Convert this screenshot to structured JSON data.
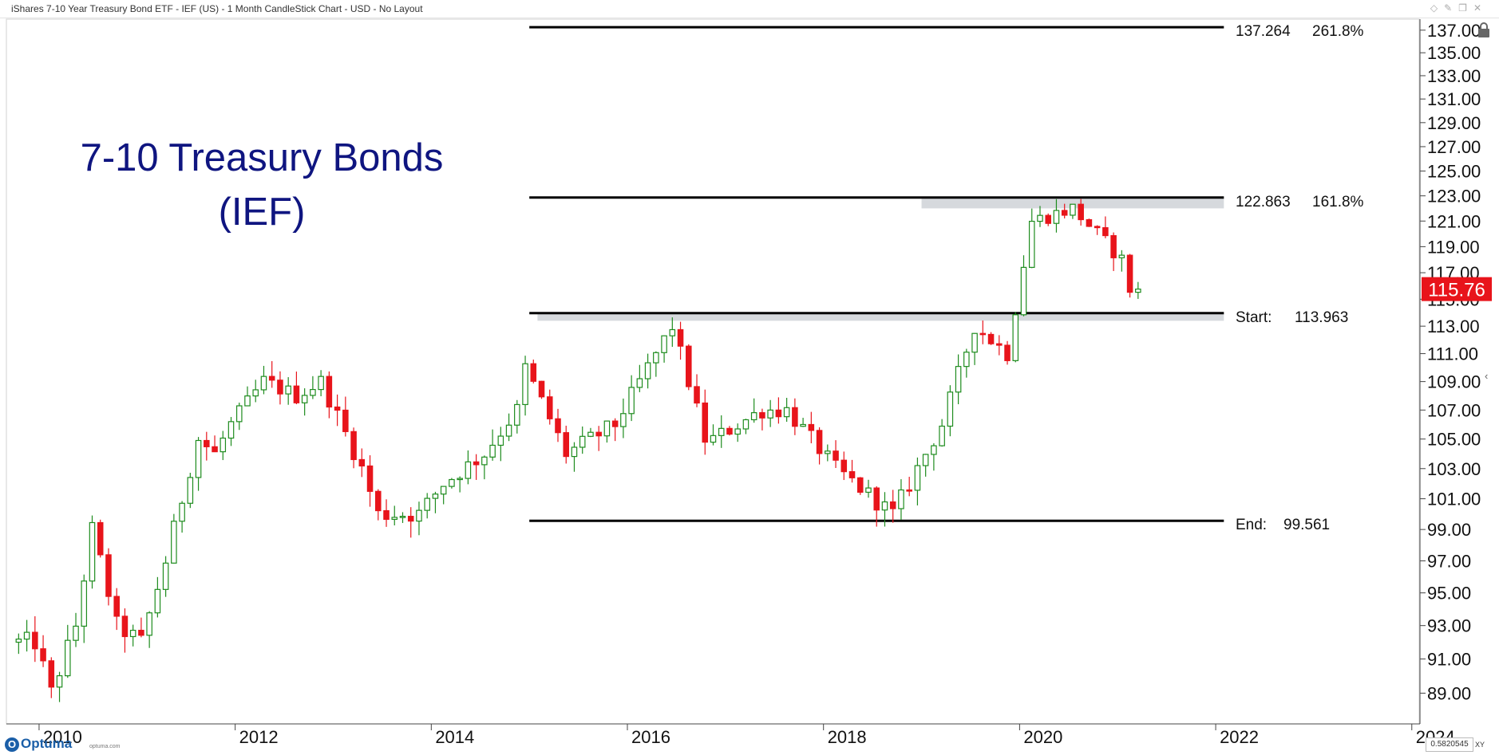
{
  "window": {
    "title": "iShares 7-10 Year Treasury Bond ETF - IEF (US) - 1 Month CandleStick Chart - USD - No Layout",
    "window_icons": [
      "pin-icon",
      "float-icon",
      "restore-icon",
      "close-icon"
    ]
  },
  "annotation": {
    "line1": "7-10 Treasury Bonds",
    "line2": "(IEF)",
    "color": "#0f1580"
  },
  "fib_levels": [
    {
      "value": "137.264",
      "pct": "261.8%"
    },
    {
      "value": "122.863",
      "pct": "161.8%"
    },
    {
      "prefix": "Start:",
      "value": "113.963"
    },
    {
      "prefix": "End:",
      "value": "99.561"
    }
  ],
  "last_price": {
    "label": "115.76",
    "value": 115.76,
    "color": "#e8141b"
  },
  "footer": {
    "brand": "Optuma",
    "site": "optuma.com",
    "readout": "0.5820545",
    "mode": "XY"
  },
  "chart_data": {
    "type": "candlestick",
    "interval": "1 Month",
    "currency": "USD",
    "y_range": [
      87.6,
      137.7
    ],
    "log_scale": true,
    "x_range": [
      "2009-09",
      "2024-02"
    ],
    "x_ticks": [
      "2010",
      "2012",
      "2014",
      "2016",
      "2018",
      "2020",
      "2022",
      "2024"
    ],
    "x_tick_labels": [
      "2010",
      "2012",
      "2014",
      "2016",
      "2018",
      "2020",
      "2022",
      "2024"
    ],
    "y_ticks": [
      89,
      91,
      93,
      95,
      97,
      99,
      101,
      103,
      105,
      107,
      109,
      111,
      113,
      115,
      117,
      119,
      121,
      123,
      125,
      127,
      129,
      131,
      133,
      135,
      137
    ],
    "y_tick_labels": [
      "89.00",
      "91.00",
      "93.00",
      "95.00",
      "97.00",
      "99.00",
      "101.00",
      "103.00",
      "105.00",
      "107.00",
      "109.00",
      "111.00",
      "113.00",
      "115.00",
      "117.00",
      "119.00",
      "121.00",
      "123.00",
      "125.00",
      "127.00",
      "129.00",
      "131.00",
      "133.00",
      "135.00",
      "137.00"
    ],
    "fib_lines": [
      {
        "price": 137.264,
        "from": "2015-01",
        "to": "2022-02"
      },
      {
        "price": 122.863,
        "from": "2015-01",
        "to": "2022-02"
      },
      {
        "price": 113.963,
        "from": "2015-01",
        "to": "2022-02"
      },
      {
        "price": 99.561,
        "from": "2015-01",
        "to": "2022-02"
      }
    ],
    "zones": [
      {
        "from": "2019-01",
        "to": "2022-02",
        "low": 122.0,
        "high": 122.863
      },
      {
        "from": "2015-02",
        "to": "2022-02",
        "low": 113.4,
        "high": 113.963
      }
    ],
    "up_color": "#1e8c1e",
    "down_color": "#e8141b",
    "anchors_comment": "monthly OHLC interpolated between read-off anchor points",
    "anchors": [
      [
        "2010-01",
        92
      ],
      [
        "2010-03",
        89
      ],
      [
        "2010-06",
        93
      ],
      [
        "2010-08",
        99
      ],
      [
        "2010-11",
        93
      ],
      [
        "2011-02",
        92
      ],
      [
        "2011-05",
        97
      ],
      [
        "2011-09",
        105
      ],
      [
        "2011-11",
        104
      ],
      [
        "2012-01",
        106
      ],
      [
        "2012-05",
        109
      ],
      [
        "2012-09",
        108
      ],
      [
        "2012-12",
        109
      ],
      [
        "2013-05",
        103
      ],
      [
        "2013-07",
        100
      ],
      [
        "2013-12",
        100
      ],
      [
        "2014-03",
        102
      ],
      [
        "2014-08",
        104
      ],
      [
        "2014-12",
        107
      ],
      [
        "2015-01",
        110
      ],
      [
        "2015-06",
        104
      ],
      [
        "2015-12",
        106
      ],
      [
        "2016-07",
        113
      ],
      [
        "2016-11",
        105
      ],
      [
        "2016-12",
        105
      ],
      [
        "2017-06",
        107
      ],
      [
        "2017-09",
        107
      ],
      [
        "2017-12",
        105
      ],
      [
        "2018-03",
        103
      ],
      [
        "2018-10",
        100
      ],
      [
        "2018-12",
        102
      ],
      [
        "2019-04",
        106
      ],
      [
        "2019-08",
        113
      ],
      [
        "2019-10",
        112
      ],
      [
        "2019-12",
        111
      ],
      [
        "2020-03",
        121
      ],
      [
        "2020-08",
        122
      ],
      [
        "2021-02",
        118
      ],
      [
        "2021-03",
        115.76
      ]
    ]
  }
}
